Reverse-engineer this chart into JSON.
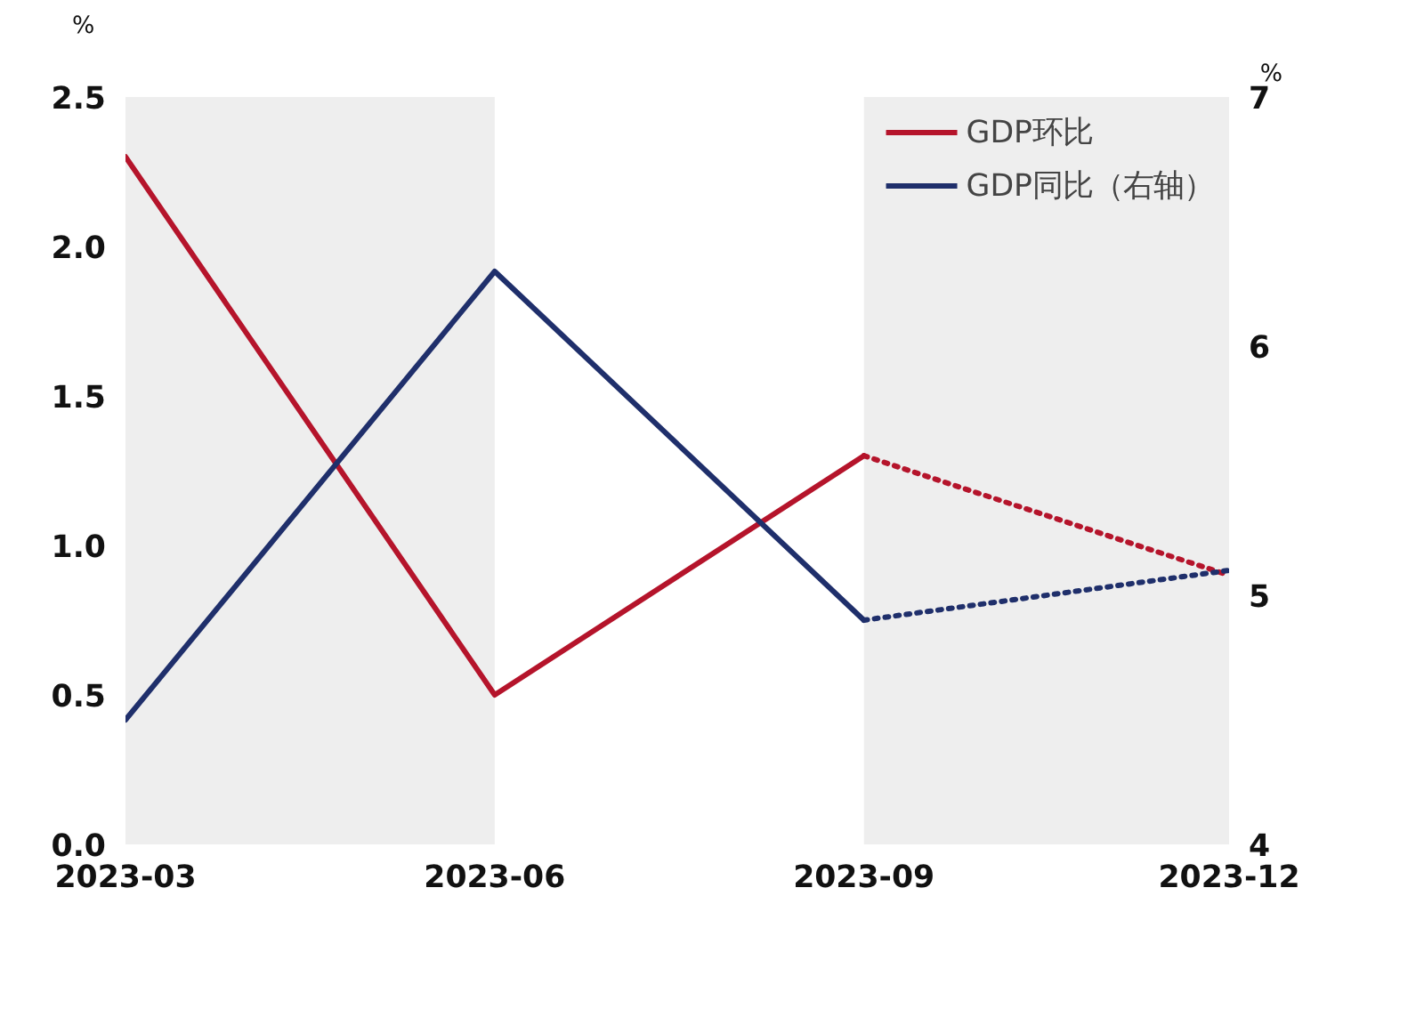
{
  "chart_data": {
    "type": "line",
    "ylabel": "%",
    "y2label": "%",
    "xlim": [
      "2023-03",
      "2023-12"
    ],
    "xticks": [
      "2023-03",
      "2023-06",
      "2023-09",
      "2023-12"
    ],
    "ylim": [
      0,
      2.5
    ],
    "yticks": [
      {
        "value": 0,
        "label": "0.0"
      },
      0.5,
      {
        "value": 1,
        "label": "1.0"
      },
      1.5,
      {
        "value": 2,
        "label": "2.0"
      },
      2.5
    ],
    "y2lim": [
      4,
      7
    ],
    "y2ticks": [
      4,
      5,
      6,
      7
    ],
    "bands": [
      {
        "axis": "x",
        "from": "2023-03",
        "to": "2023-06",
        "color": "#eeeeee"
      },
      {
        "axis": "x",
        "from": "2023-09-01",
        "to": "2023-12-01",
        "color": "#eeeeee"
      }
    ],
    "series": [
      {
        "name": "GDP环比",
        "color": "#b5142b",
        "x": [
          "2023-03",
          "2023-06",
          "2023-09"
        ],
        "values": [
          2.3,
          0.5,
          1.3
        ],
        "line_style": "solid"
      },
      {
        "name": "GDP同比（右轴）",
        "color": "#1f2f6b",
        "axis": "y2",
        "x": [
          "2023-03",
          "2023-06",
          "2023-09"
        ],
        "values": [
          4.5,
          6.3,
          4.9
        ],
        "line_style": "solid"
      },
      {
        "color": "#b5142b",
        "x": [
          "2023-09",
          "2023-12"
        ],
        "values": [
          1.3,
          0.9
        ],
        "line_style": "dotted"
      },
      {
        "color": "#1f2f6b",
        "axis": "y2",
        "x": [
          "2023-09",
          "2023-12"
        ],
        "values": [
          4.9,
          5.1
        ],
        "line_style": "dotted"
      }
    ],
    "legend": "top right",
    "grid": false
  }
}
